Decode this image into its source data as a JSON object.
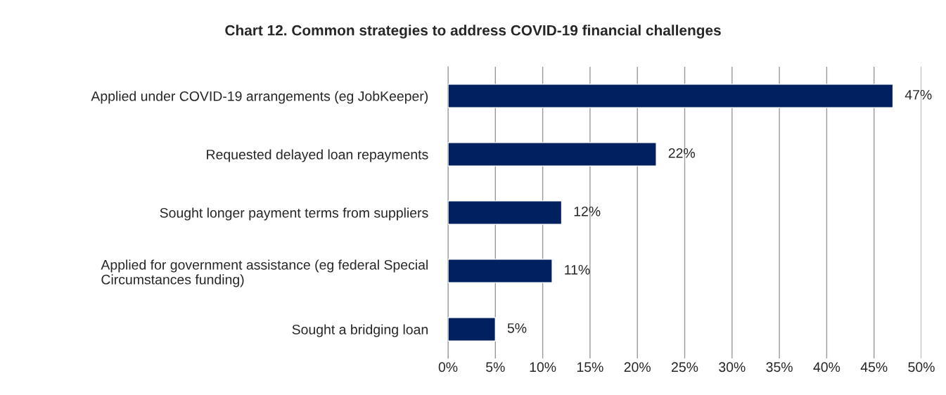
{
  "chart_data": {
    "type": "bar",
    "orientation": "horizontal",
    "title": "Chart 12. Common strategies to address COVID-19 financial challenges",
    "categories": [
      "Applied under COVID-19 arrangements (eg JobKeeper)",
      "Requested delayed loan repayments",
      "Sought longer payment terms from suppliers",
      "Applied for government assistance (eg federal Special\nCircumstances funding)",
      "Sought a bridging loan"
    ],
    "values": [
      47,
      22,
      12,
      11,
      5
    ],
    "value_labels": [
      "47%",
      "22%",
      "12%",
      "11%",
      "5%"
    ],
    "color": "#002060",
    "xlim": [
      0,
      50
    ],
    "xticks": [
      {
        "value": 0,
        "label": "0%"
      },
      {
        "value": 5,
        "label": "5%"
      },
      {
        "value": 10,
        "label": "10%"
      },
      {
        "value": 15,
        "label": "15%"
      },
      {
        "value": 20,
        "label": "20%"
      },
      {
        "value": 25,
        "label": "25%"
      },
      {
        "value": 30,
        "label": "30%"
      },
      {
        "value": 35,
        "label": "35%"
      },
      {
        "value": 40,
        "label": "40%"
      },
      {
        "value": 45,
        "label": "45%"
      },
      {
        "value": 50,
        "label": "50%"
      }
    ],
    "grid": "x",
    "legend": false
  }
}
